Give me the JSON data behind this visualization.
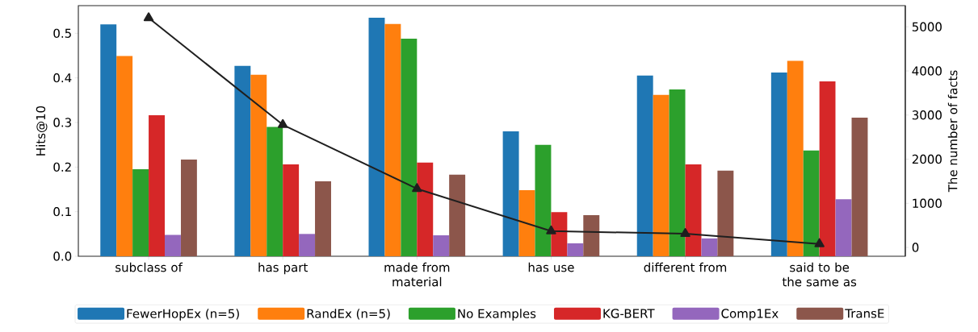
{
  "chart_data": {
    "type": "bar",
    "categories": [
      "subclass of",
      "has part",
      "made from\nmaterial",
      "has use",
      "different from",
      "said to be\nthe same as"
    ],
    "ylabel": "Hits@10",
    "y2label": "The number of facts",
    "ylim": [
      0,
      0.562
    ],
    "yticks": [
      {
        "value": 0,
        "label": "0.0"
      },
      0.1,
      0.2,
      0.3,
      0.4,
      0.5
    ],
    "y2lim": [
      -200,
      5480
    ],
    "y2ticks": [
      0,
      1000,
      2000,
      3000,
      4000,
      5000
    ],
    "legend": "bottom",
    "series": [
      {
        "name": "FewerHopEx (n=5)",
        "color": "#1f77b4",
        "values": [
          0.52,
          0.427,
          0.535,
          0.28,
          0.405,
          0.412
        ]
      },
      {
        "name": "RandEx (n=5)",
        "color": "#ff7f0e",
        "values": [
          0.449,
          0.407,
          0.521,
          0.148,
          0.362,
          0.438
        ]
      },
      {
        "name": "No Examples",
        "color": "#2ca02c",
        "values": [
          0.195,
          0.29,
          0.488,
          0.25,
          0.374,
          0.237
        ]
      },
      {
        "name": "KG-BERT",
        "color": "#d62728",
        "values": [
          0.316,
          0.206,
          0.21,
          0.099,
          0.206,
          0.392
        ]
      },
      {
        "name": "Comp1Ex",
        "color": "#9467bd",
        "values": [
          0.048,
          0.05,
          0.047,
          0.029,
          0.04,
          0.128
        ]
      },
      {
        "name": "TransE",
        "color": "#8c564b",
        "values": [
          0.217,
          0.168,
          0.183,
          0.092,
          0.192,
          0.311
        ]
      },
      {
        "type": "line",
        "axis": "y2",
        "marker": "triangle",
        "color": "#1f1f1f",
        "values": [
          5200,
          2780,
          1330,
          370,
          310,
          80
        ]
      }
    ]
  }
}
